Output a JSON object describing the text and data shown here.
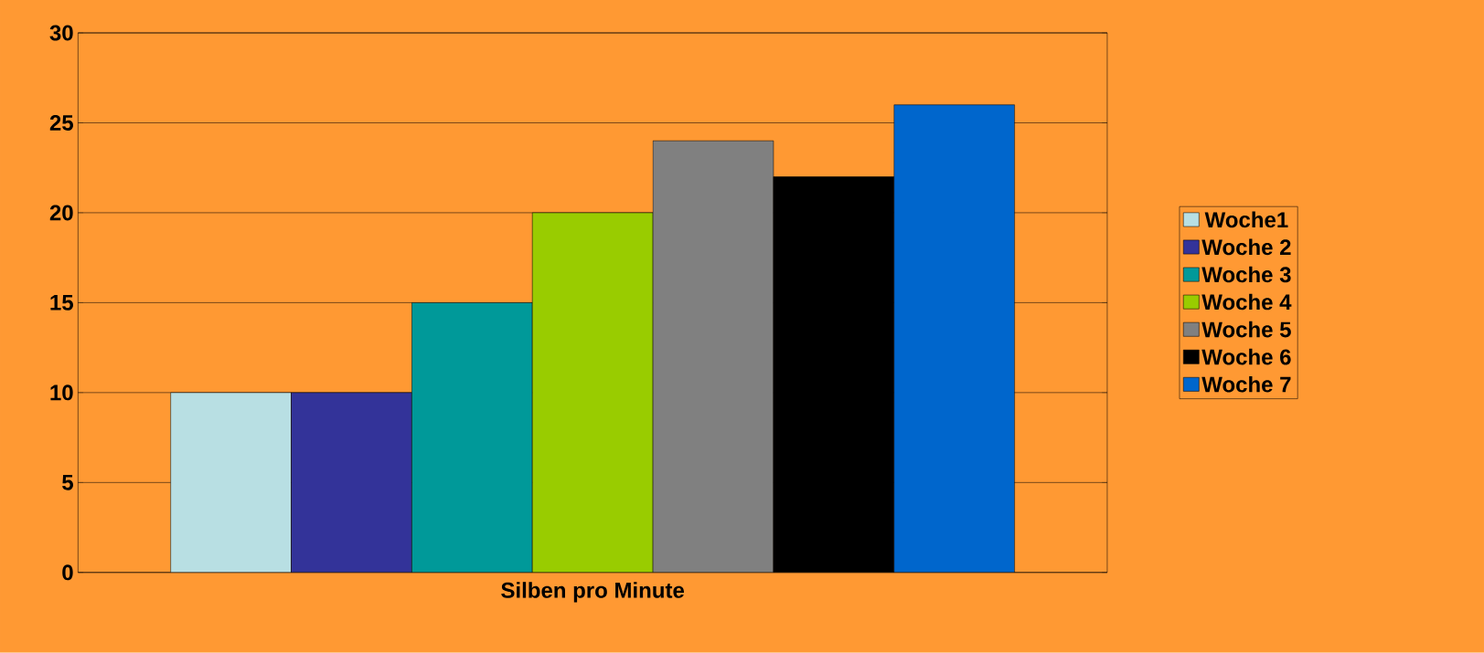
{
  "chart_data": {
    "type": "bar",
    "categories": [
      "Silben pro Minute"
    ],
    "series": [
      {
        "name": "Woche1",
        "color": "#b8dfe3",
        "values": [
          10
        ]
      },
      {
        "name": "Woche 2",
        "color": "#333399",
        "values": [
          10
        ]
      },
      {
        "name": "Woche 3",
        "color": "#009999",
        "values": [
          15
        ]
      },
      {
        "name": "Woche 4",
        "color": "#99cc00",
        "values": [
          20
        ]
      },
      {
        "name": "Woche 5",
        "color": "#808080",
        "values": [
          24
        ]
      },
      {
        "name": "Woche 6",
        "color": "#000000",
        "values": [
          22
        ]
      },
      {
        "name": "Woche 7",
        "color": "#0066cc",
        "values": [
          26
        ]
      }
    ],
    "ylim": [
      0,
      30
    ],
    "yticks": [
      0,
      5,
      10,
      15,
      20,
      25,
      30
    ],
    "grid": "y",
    "legend": "right"
  }
}
